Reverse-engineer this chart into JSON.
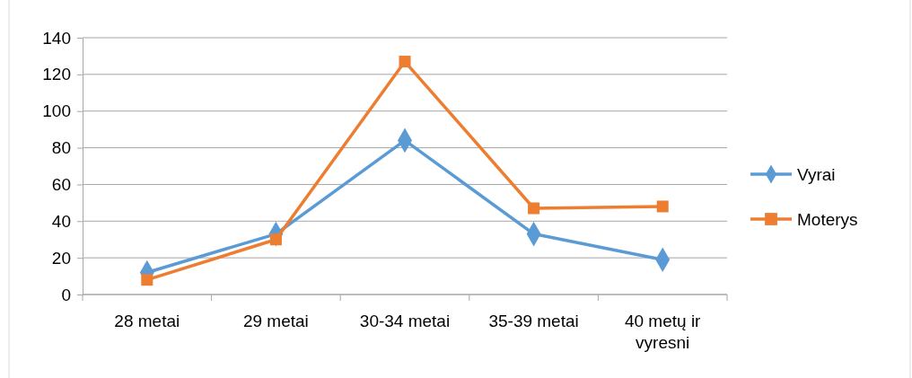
{
  "chart_data": {
    "type": "line",
    "categories": [
      "28 metai",
      "29 metai",
      "30-34 metai",
      "35-39 metai",
      "40 metų ir vyresni"
    ],
    "series": [
      {
        "name": "Vyrai",
        "color": "#5b9bd5",
        "values": [
          12,
          33,
          84,
          33,
          19
        ],
        "marker": "diamond"
      },
      {
        "name": "Moterys",
        "color": "#ed7d31",
        "values": [
          8,
          30,
          127,
          47,
          48
        ],
        "marker": "square"
      }
    ],
    "ylim": [
      0,
      140
    ],
    "yticks": [
      0,
      20,
      40,
      60,
      80,
      100,
      120,
      140
    ],
    "grid": "y",
    "legend": "right",
    "line_style": "solid"
  }
}
